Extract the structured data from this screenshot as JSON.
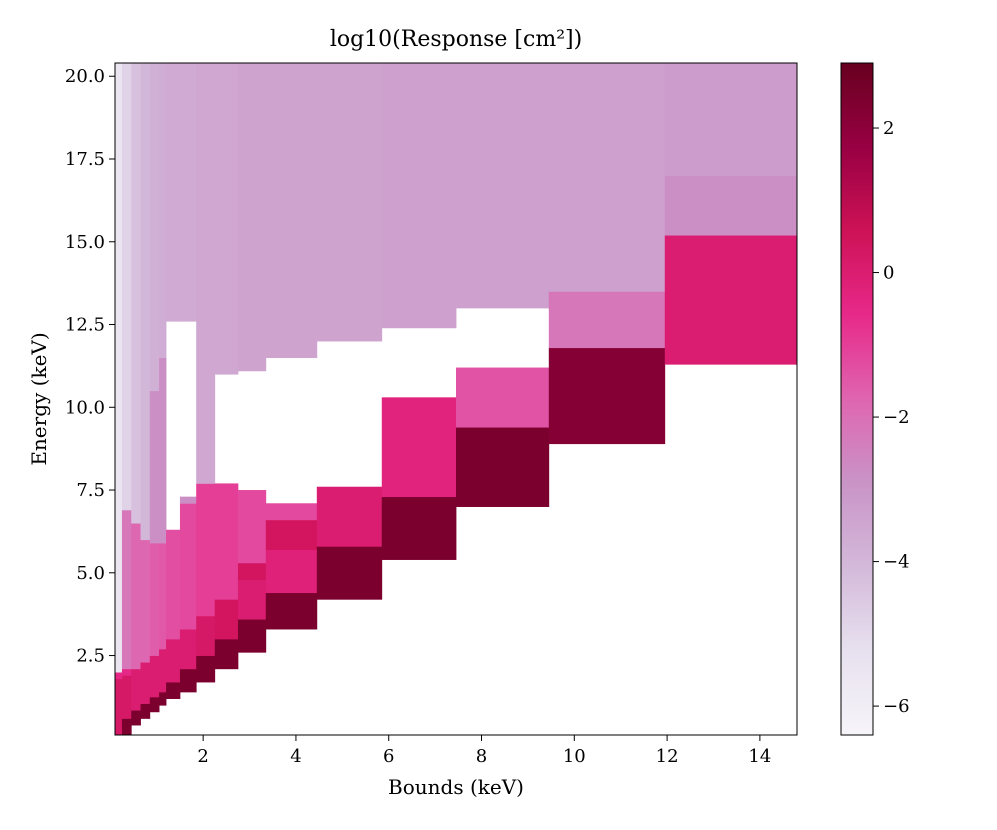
{
  "chart_data": {
    "type": "heatmap",
    "title": "log10(Response [cm²])",
    "xlabel": "Bounds (keV)",
    "ylabel": "Energy (keV)",
    "xlim": [
      0.1,
      14.8
    ],
    "ylim": [
      0.1,
      20.4
    ],
    "x_ticks": [
      2,
      4,
      6,
      8,
      10,
      12,
      14
    ],
    "y_ticks": [
      2.5,
      5.0,
      7.5,
      10.0,
      12.5,
      15.0,
      17.5,
      20.0
    ],
    "x_tick_labels": [
      "2",
      "4",
      "6",
      "8",
      "10",
      "12",
      "14"
    ],
    "y_tick_labels": [
      "2.5",
      "5.0",
      "7.5",
      "10.0",
      "12.5",
      "15.0",
      "17.5",
      "20.0"
    ],
    "colorbar": {
      "vmin": -6.4,
      "vmax": 2.9,
      "ticks": [
        2,
        0,
        -2,
        -4,
        -6
      ],
      "tick_labels": [
        "2",
        "0",
        "−2",
        "−4",
        "−6"
      ],
      "colormap": "PuRd",
      "color_stops": [
        "#f7f4f9",
        "#e7e1ef",
        "#d4b9da",
        "#c994c7",
        "#df65b0",
        "#e7298a",
        "#ce1256",
        "#980043",
        "#67001f"
      ]
    },
    "cells": [
      {
        "x0": 0.1,
        "x1": 0.25,
        "y0": 0.1,
        "y1": 1.8,
        "v": 0.2
      },
      {
        "x0": 0.25,
        "x1": 0.45,
        "y0": 0.1,
        "y1": 0.6,
        "v": 2.4
      },
      {
        "x0": 0.25,
        "x1": 0.45,
        "y0": 0.6,
        "y1": 1.9,
        "v": 0.2
      },
      {
        "x0": 0.1,
        "x1": 0.25,
        "y0": 1.8,
        "y1": 2.0,
        "v": -0.5
      },
      {
        "x0": 0.1,
        "x1": 0.25,
        "y0": 2.0,
        "y1": 20.4,
        "v": -5.5
      },
      {
        "x0": 0.25,
        "x1": 0.45,
        "y0": 1.9,
        "y1": 2.1,
        "v": -0.5
      },
      {
        "x0": 0.25,
        "x1": 0.45,
        "y0": 2.1,
        "y1": 6.9,
        "v": -2.2
      },
      {
        "x0": 0.25,
        "x1": 0.45,
        "y0": 6.9,
        "y1": 20.4,
        "v": -4.8
      },
      {
        "x0": 0.45,
        "x1": 0.65,
        "y0": 0.4,
        "y1": 0.85,
        "v": 2.4
      },
      {
        "x0": 0.45,
        "x1": 0.65,
        "y0": 0.85,
        "y1": 2.1,
        "v": 0.0
      },
      {
        "x0": 0.45,
        "x1": 0.65,
        "y0": 2.1,
        "y1": 6.5,
        "v": -1.8
      },
      {
        "x0": 0.45,
        "x1": 0.65,
        "y0": 6.5,
        "y1": 20.4,
        "v": -4.3
      },
      {
        "x0": 0.65,
        "x1": 0.85,
        "y0": 0.6,
        "y1": 1.05,
        "v": 2.4
      },
      {
        "x0": 0.65,
        "x1": 0.85,
        "y0": 1.05,
        "y1": 2.3,
        "v": 0.0
      },
      {
        "x0": 0.65,
        "x1": 0.85,
        "y0": 2.3,
        "y1": 6.0,
        "v": -1.8
      },
      {
        "x0": 0.65,
        "x1": 0.85,
        "y0": 6.0,
        "y1": 20.4,
        "v": -4.0
      },
      {
        "x0": 0.85,
        "x1": 1.05,
        "y0": 0.8,
        "y1": 1.25,
        "v": 2.4
      },
      {
        "x0": 0.85,
        "x1": 1.05,
        "y0": 1.25,
        "y1": 2.5,
        "v": 0.0
      },
      {
        "x0": 0.85,
        "x1": 1.05,
        "y0": 2.5,
        "y1": 5.9,
        "v": -1.6
      },
      {
        "x0": 0.85,
        "x1": 1.05,
        "y0": 5.9,
        "y1": 10.5,
        "v": -2.8
      },
      {
        "x0": 0.85,
        "x1": 1.05,
        "y0": 10.5,
        "y1": 20.4,
        "v": -3.8
      },
      {
        "x0": 1.05,
        "x1": 1.2,
        "y0": 1.0,
        "y1": 1.4,
        "v": 2.4
      },
      {
        "x0": 1.05,
        "x1": 1.2,
        "y0": 1.4,
        "y1": 2.7,
        "v": 0.0
      },
      {
        "x0": 1.05,
        "x1": 1.2,
        "y0": 2.7,
        "y1": 5.9,
        "v": -1.5
      },
      {
        "x0": 1.05,
        "x1": 1.2,
        "y0": 5.9,
        "y1": 11.5,
        "v": -2.8
      },
      {
        "x0": 1.05,
        "x1": 1.2,
        "y0": 11.5,
        "y1": 20.4,
        "v": -3.7
      },
      {
        "x0": 1.2,
        "x1": 1.5,
        "y0": 1.2,
        "y1": 1.7,
        "v": 2.4
      },
      {
        "x0": 1.2,
        "x1": 1.5,
        "y0": 1.7,
        "y1": 3.0,
        "v": 0.0
      },
      {
        "x0": 1.2,
        "x1": 1.5,
        "y0": 3.0,
        "y1": 6.3,
        "v": -1.3
      },
      {
        "x0": 1.2,
        "x1": 1.5,
        "y0": 12.6,
        "y1": 20.4,
        "v": -3.6
      },
      {
        "x0": 1.5,
        "x1": 1.85,
        "y0": 1.4,
        "y1": 2.1,
        "v": 2.4
      },
      {
        "x0": 1.5,
        "x1": 1.85,
        "y0": 2.1,
        "y1": 3.3,
        "v": 0.0
      },
      {
        "x0": 1.5,
        "x1": 1.85,
        "y0": 3.3,
        "y1": 7.1,
        "v": -1.2
      },
      {
        "x0": 1.5,
        "x1": 1.85,
        "y0": 7.1,
        "y1": 7.3,
        "v": -2.8
      },
      {
        "x0": 1.5,
        "x1": 1.85,
        "y0": 12.6,
        "y1": 20.4,
        "v": -3.6
      },
      {
        "x0": 1.85,
        "x1": 2.25,
        "y0": 1.7,
        "y1": 2.5,
        "v": 2.4
      },
      {
        "x0": 1.85,
        "x1": 2.25,
        "y0": 2.5,
        "y1": 3.7,
        "v": 0.2
      },
      {
        "x0": 1.85,
        "x1": 2.25,
        "y0": 3.7,
        "y1": 7.7,
        "v": -1.0
      },
      {
        "x0": 1.85,
        "x1": 2.25,
        "y0": 7.7,
        "y1": 20.4,
        "v": -3.5
      },
      {
        "x0": 2.25,
        "x1": 2.75,
        "y0": 2.1,
        "y1": 3.0,
        "v": 2.4
      },
      {
        "x0": 2.25,
        "x1": 2.75,
        "y0": 3.0,
        "y1": 4.2,
        "v": 0.4
      },
      {
        "x0": 2.25,
        "x1": 2.75,
        "y0": 4.2,
        "y1": 7.7,
        "v": -1.0
      },
      {
        "x0": 2.25,
        "x1": 2.75,
        "y0": 11.0,
        "y1": 20.4,
        "v": -3.5
      },
      {
        "x0": 2.75,
        "x1": 3.35,
        "y0": 2.6,
        "y1": 3.6,
        "v": 2.4
      },
      {
        "x0": 2.75,
        "x1": 3.35,
        "y0": 3.6,
        "y1": 4.8,
        "v": 0.0
      },
      {
        "x0": 2.75,
        "x1": 3.35,
        "y0": 4.8,
        "y1": 5.3,
        "v": 0.4
      },
      {
        "x0": 2.75,
        "x1": 3.35,
        "y0": 5.3,
        "y1": 7.5,
        "v": -1.2
      },
      {
        "x0": 2.75,
        "x1": 3.35,
        "y0": 11.1,
        "y1": 20.4,
        "v": -3.4
      },
      {
        "x0": 3.35,
        "x1": 4.45,
        "y0": 3.3,
        "y1": 4.4,
        "v": 2.4
      },
      {
        "x0": 3.35,
        "x1": 4.45,
        "y0": 4.4,
        "y1": 5.7,
        "v": -0.2
      },
      {
        "x0": 3.35,
        "x1": 4.45,
        "y0": 5.7,
        "y1": 6.6,
        "v": 0.4
      },
      {
        "x0": 3.35,
        "x1": 4.45,
        "y0": 6.6,
        "y1": 7.1,
        "v": -1.2
      },
      {
        "x0": 3.35,
        "x1": 4.45,
        "y0": 11.5,
        "y1": 20.4,
        "v": -3.4
      },
      {
        "x0": 4.45,
        "x1": 5.85,
        "y0": 4.2,
        "y1": 5.8,
        "v": 2.4
      },
      {
        "x0": 4.45,
        "x1": 5.85,
        "y0": 5.8,
        "y1": 7.6,
        "v": 0.0
      },
      {
        "x0": 4.45,
        "x1": 5.85,
        "y0": 12.0,
        "y1": 20.4,
        "v": -3.4
      },
      {
        "x0": 5.85,
        "x1": 7.45,
        "y0": 5.4,
        "y1": 7.3,
        "v": 2.4
      },
      {
        "x0": 5.85,
        "x1": 7.45,
        "y0": 7.3,
        "y1": 10.3,
        "v": -0.3
      },
      {
        "x0": 5.85,
        "x1": 7.45,
        "y0": 12.4,
        "y1": 20.4,
        "v": -3.3
      },
      {
        "x0": 7.45,
        "x1": 9.45,
        "y0": 7.0,
        "y1": 9.4,
        "v": 2.4
      },
      {
        "x0": 7.45,
        "x1": 9.45,
        "y0": 9.4,
        "y1": 11.2,
        "v": -1.4
      },
      {
        "x0": 7.45,
        "x1": 9.45,
        "y0": 13.0,
        "y1": 20.4,
        "v": -3.3
      },
      {
        "x0": 9.45,
        "x1": 11.95,
        "y0": 8.9,
        "y1": 11.8,
        "v": 2.2
      },
      {
        "x0": 9.45,
        "x1": 11.95,
        "y0": 11.8,
        "y1": 13.5,
        "v": -2.2
      },
      {
        "x0": 9.45,
        "x1": 11.95,
        "y0": 13.5,
        "y1": 20.4,
        "v": -3.3
      },
      {
        "x0": 11.95,
        "x1": 14.8,
        "y0": 11.3,
        "y1": 15.2,
        "v": 0.0
      },
      {
        "x0": 11.95,
        "x1": 14.8,
        "y0": 15.2,
        "y1": 17.0,
        "v": -2.8
      },
      {
        "x0": 11.95,
        "x1": 14.8,
        "y0": 17.0,
        "y1": 20.4,
        "v": -3.2
      }
    ]
  }
}
